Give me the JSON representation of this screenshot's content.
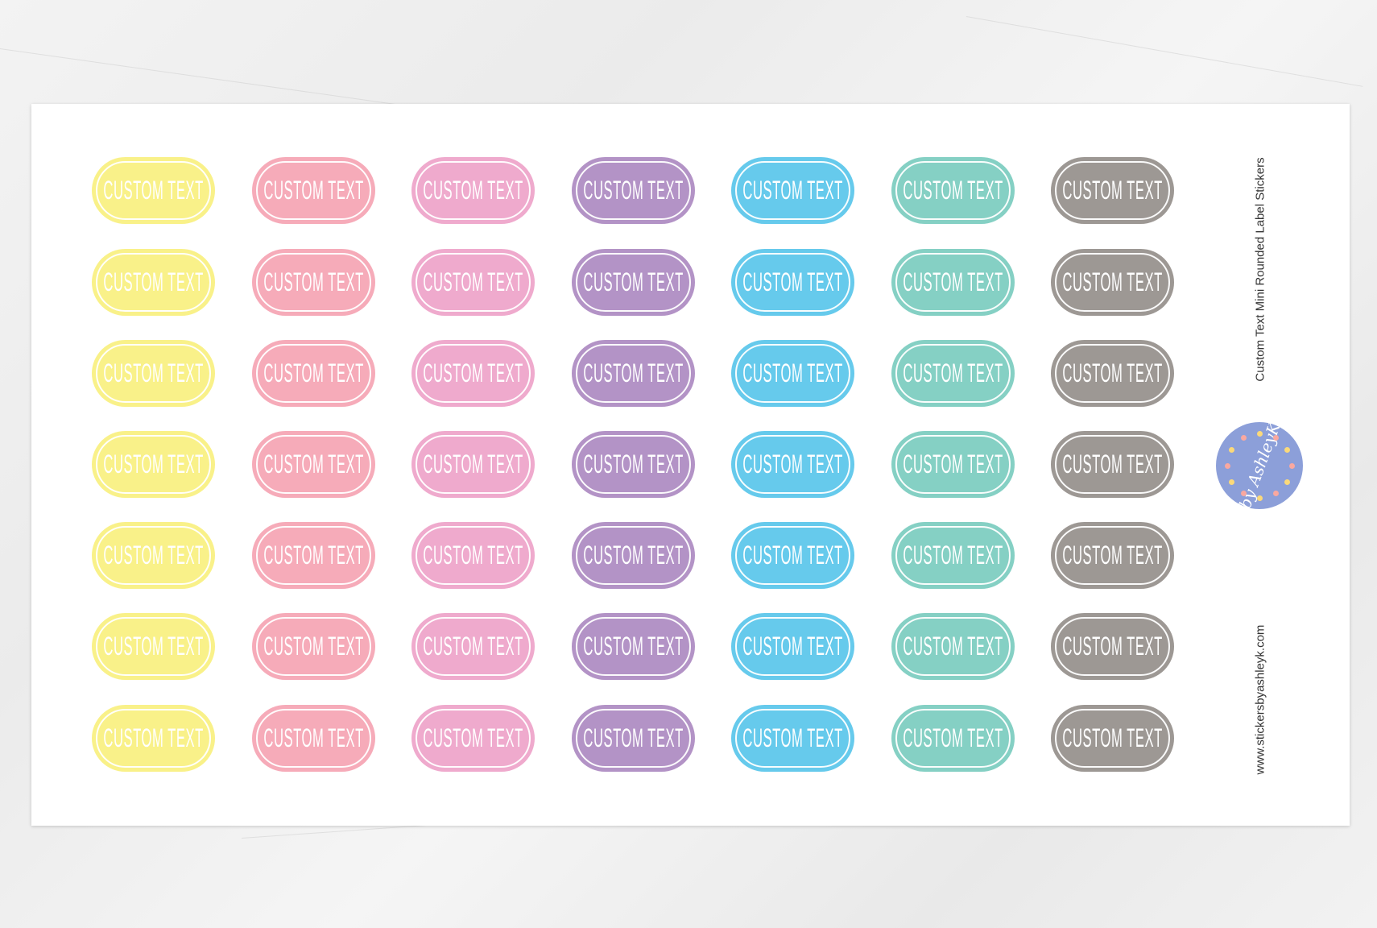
{
  "sheet": {
    "title": "Custom Text Mini Rounded Label Stickers",
    "website": "www.stickersbyashleyk.com",
    "logo_text": "by AshleyK"
  },
  "columns": [
    {
      "color": "#f9f189",
      "labels": [
        "CUSTOM TEXT",
        "CUSTOM TEXT",
        "CUSTOM TEXT",
        "CUSTOM TEXT",
        "CUSTOM TEXT",
        "CUSTOM TEXT",
        "CUSTOM TEXT"
      ]
    },
    {
      "color": "#f6abb9",
      "labels": [
        "CUSTOM TEXT",
        "CUSTOM TEXT",
        "CUSTOM TEXT",
        "CUSTOM TEXT",
        "CUSTOM TEXT",
        "CUSTOM TEXT",
        "CUSTOM TEXT"
      ]
    },
    {
      "color": "#efaacd",
      "labels": [
        "CUSTOM TEXT",
        "CUSTOM TEXT",
        "CUSTOM TEXT",
        "CUSTOM TEXT",
        "CUSTOM TEXT",
        "CUSTOM TEXT",
        "CUSTOM TEXT"
      ]
    },
    {
      "color": "#b393c6",
      "labels": [
        "CUSTOM TEXT",
        "CUSTOM TEXT",
        "CUSTOM TEXT",
        "CUSTOM TEXT",
        "CUSTOM TEXT",
        "CUSTOM TEXT",
        "CUSTOM TEXT"
      ]
    },
    {
      "color": "#66caec",
      "labels": [
        "CUSTOM TEXT",
        "CUSTOM TEXT",
        "CUSTOM TEXT",
        "CUSTOM TEXT",
        "CUSTOM TEXT",
        "CUSTOM TEXT",
        "CUSTOM TEXT"
      ]
    },
    {
      "color": "#85d0c4",
      "labels": [
        "CUSTOM TEXT",
        "CUSTOM TEXT",
        "CUSTOM TEXT",
        "CUSTOM TEXT",
        "CUSTOM TEXT",
        "CUSTOM TEXT",
        "CUSTOM TEXT"
      ]
    },
    {
      "color": "#9d9894",
      "labels": [
        "CUSTOM TEXT",
        "CUSTOM TEXT",
        "CUSTOM TEXT",
        "CUSTOM TEXT",
        "CUSTOM TEXT",
        "CUSTOM TEXT",
        "CUSTOM TEXT"
      ]
    }
  ],
  "logo_colors": {
    "background": "#8c9fd9",
    "hearts": [
      "#f9a8a0",
      "#fbd97a"
    ]
  }
}
